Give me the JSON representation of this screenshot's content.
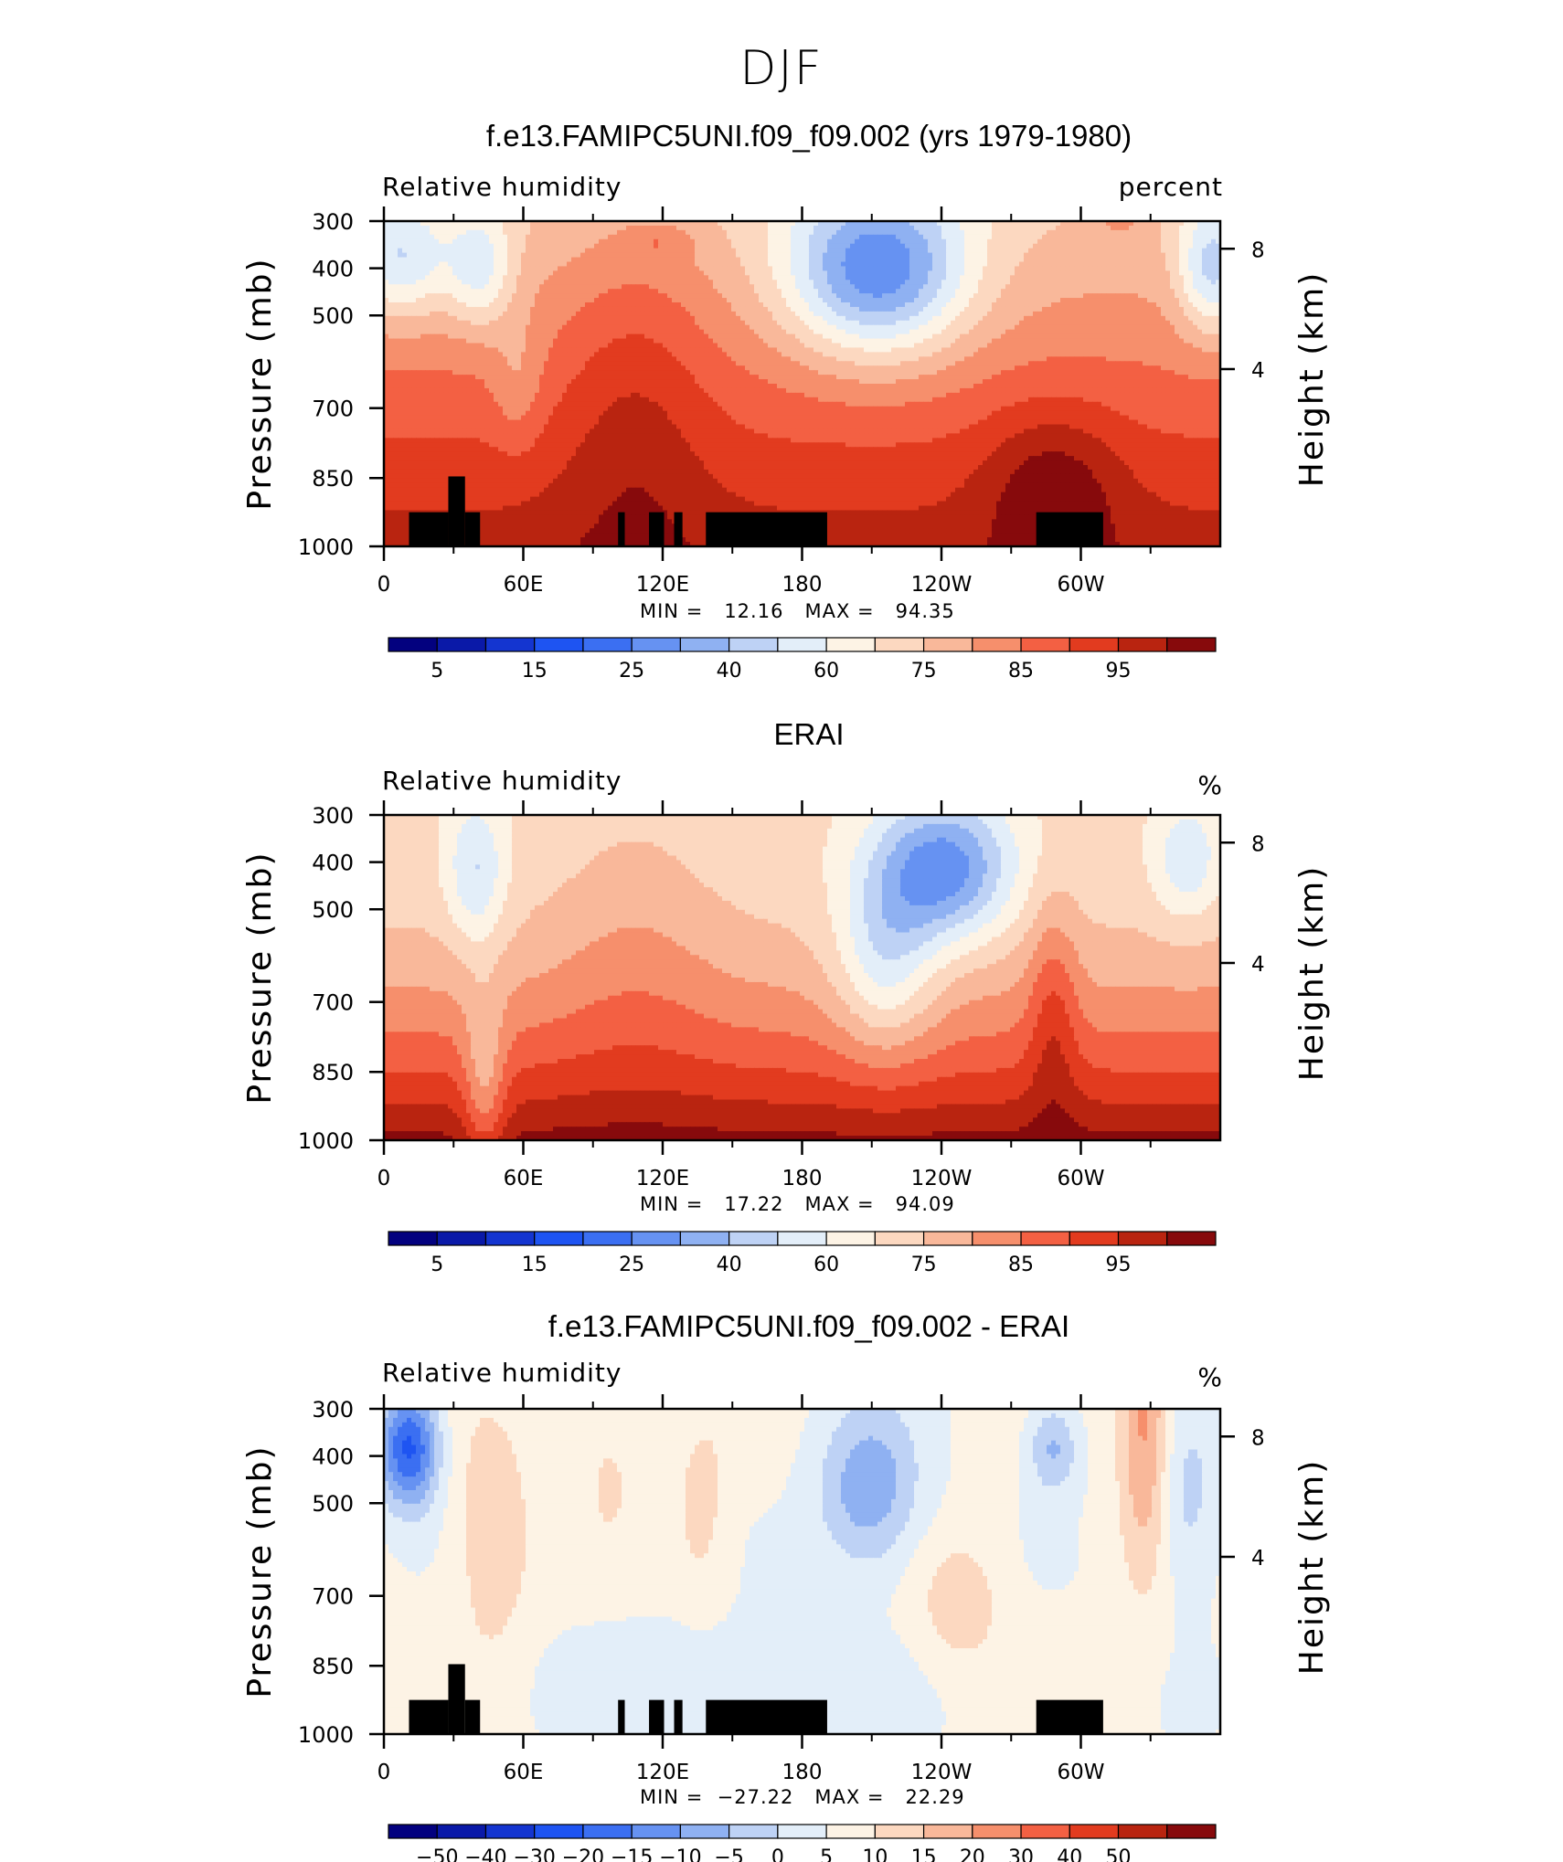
{
  "page": {
    "title": "DJF"
  },
  "colors": {
    "abs_scale": [
      "#03017f",
      "#0a19a8",
      "#1435d0",
      "#1e54f2",
      "#3b6ff2",
      "#6692f2",
      "#8fb1f2",
      "#bed2f5",
      "#e3eef9",
      "#fdf3e5",
      "#fcd8c0",
      "#f9b89a",
      "#f68f6c",
      "#f36043",
      "#e23b1f",
      "#b92410",
      "#870a0c"
    ],
    "diff_scale": [
      "#03017f",
      "#0a19a8",
      "#1435d0",
      "#1e54f2",
      "#3b6ff2",
      "#6692f2",
      "#8fb1f2",
      "#bed2f5",
      "#e3eef9",
      "#fdf3e5",
      "#fcd8c0",
      "#f9b89a",
      "#f68f6c",
      "#f36043",
      "#e23b1f",
      "#b92410",
      "#870a0c"
    ]
  },
  "chart_data": [
    {
      "type": "heatmap",
      "title": "f.e13.FAMIPC5UNI.f09_f09.002 (yrs 1979-1980)",
      "left_label": "Relative humidity",
      "right_label": "percent",
      "ylabel": "Pressure (mb)",
      "y2label": "Height (km)",
      "x_ticks": [
        "0",
        "60E",
        "120E",
        "180",
        "120W",
        "60W"
      ],
      "y_ticks": [
        "300",
        "400",
        "500",
        "700",
        "850",
        "1000"
      ],
      "y2_ticks": [
        "8",
        "4"
      ],
      "stats": "MIN =   12.16   MAX =   94.35",
      "min": 12.16,
      "max": 94.35,
      "colorbar_labels": [
        "5",
        "15",
        "25",
        "40",
        "60",
        "75",
        "85",
        "95"
      ],
      "topography": true
    },
    {
      "type": "heatmap",
      "title": "ERAI",
      "left_label": "Relative humidity",
      "right_label": "%",
      "ylabel": "Pressure (mb)",
      "y2label": "Height (km)",
      "x_ticks": [
        "0",
        "60E",
        "120E",
        "180",
        "120W",
        "60W"
      ],
      "y_ticks": [
        "300",
        "400",
        "500",
        "700",
        "850",
        "1000"
      ],
      "y2_ticks": [
        "8",
        "4"
      ],
      "stats": "MIN =   17.22   MAX =   94.09",
      "min": 17.22,
      "max": 94.09,
      "colorbar_labels": [
        "5",
        "15",
        "25",
        "40",
        "60",
        "75",
        "85",
        "95"
      ],
      "topography": false
    },
    {
      "type": "heatmap",
      "title": "f.e13.FAMIPC5UNI.f09_f09.002 - ERAI",
      "left_label": "Relative humidity",
      "right_label": "%",
      "ylabel": "Pressure (mb)",
      "y2label": "Height (km)",
      "x_ticks": [
        "0",
        "60E",
        "120E",
        "180",
        "120W",
        "60W"
      ],
      "y_ticks": [
        "300",
        "400",
        "500",
        "700",
        "850",
        "1000"
      ],
      "y2_ticks": [
        "8",
        "4"
      ],
      "stats": "MIN =  −27.22   MAX =   22.29",
      "min": -27.22,
      "max": 22.29,
      "colorbar_labels": [
        "−50",
        "−40",
        "−30",
        "−20",
        "−15",
        "−10",
        "−5",
        "0",
        "5",
        "10",
        "15",
        "20",
        "30",
        "40",
        "50"
      ],
      "topography": true
    }
  ]
}
